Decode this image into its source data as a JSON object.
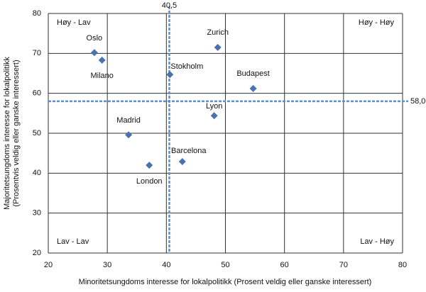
{
  "chart_data": {
    "type": "scatter",
    "xlabel": "Minoritetsungdoms interesse for lokalpolitikk (Prosent veldig eller ganske interessert)",
    "ylabel": [
      "Majoritetsungdoms interesse for lokalpolitikk",
      "(Prosentvis veldig eller ganske interessert)"
    ],
    "point_labels": [
      "Oslo",
      "Milano",
      "Stokholm",
      "Zurich",
      "Budapest",
      "Lyon",
      "Madrid",
      "London",
      "Barcelona"
    ],
    "x": [
      27.8,
      29.1,
      40.6,
      48.7,
      54.7,
      48.1,
      33.6,
      37.1,
      42.7
    ],
    "values": [
      70.2,
      68.3,
      64.7,
      71.5,
      61.2,
      54.4,
      49.6,
      42.0,
      42.9
    ],
    "color": "#4a72b0",
    "xlim": [
      20,
      80
    ],
    "xticks": [
      20,
      30,
      40,
      50,
      60,
      70,
      80
    ],
    "ylim": [
      20,
      80
    ],
    "yticks": [
      20,
      30,
      40,
      50,
      60,
      70,
      80
    ],
    "grid": true,
    "reference_lines": [
      {
        "axis": "x",
        "value": 40.5,
        "label": "40,5"
      },
      {
        "axis": "y",
        "value": 58.0,
        "label": "58,0"
      }
    ],
    "reference_color": "#5b8fd0",
    "quadrant_labels": [
      "Høy - Lav",
      "Høy - Høy",
      "Lav - Lav",
      "Lav - Høy"
    ]
  }
}
